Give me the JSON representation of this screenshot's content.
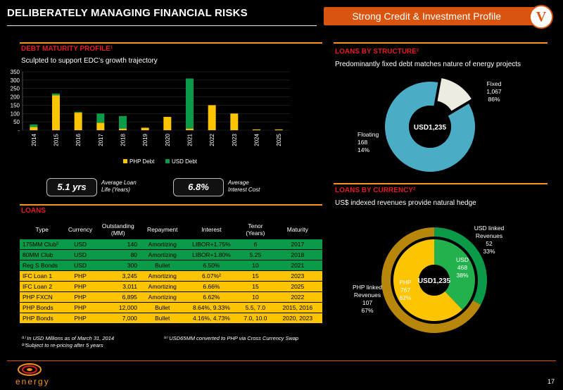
{
  "header": {
    "title": "DELIBERATELY MANAGING FINANCIAL RISKS",
    "banner": "Strong Credit & Investment Profile",
    "badge": "V"
  },
  "debt_profile": {
    "heading": "DEBT MATURITY PROFILE¹",
    "subtitle": "Sculpted to support EDC’s growth trajectory"
  },
  "kpis": {
    "life_value": "5.1 yrs",
    "life_label_1": "Average Loan",
    "life_label_2": "Life (Years)",
    "rate_value": "6.8%",
    "rate_label_1": "Average",
    "rate_label_2": "Interest Cost"
  },
  "loans": {
    "heading": "LOANS",
    "columns": [
      "Type",
      "Currency",
      "Outstanding (MM)",
      "Repayment",
      "Interest",
      "Tenor (Years)",
      "Maturity"
    ],
    "rows": [
      {
        "type": "175MM Club³",
        "currency": "USD",
        "outstanding": "140",
        "repayment": "Amortizing",
        "interest": "LIBOR+1.75%",
        "tenor": "6",
        "maturity": "2017",
        "color": "green"
      },
      {
        "type": "80MM Club",
        "currency": "USD",
        "outstanding": "80",
        "repayment": "Amortizing",
        "interest": "LIBOR+1.80%",
        "tenor": "5.25",
        "maturity": "2018",
        "color": "green"
      },
      {
        "type": "Reg S Bonds",
        "currency": "USD",
        "outstanding": "300",
        "repayment": "Bullet",
        "interest": "6.50%",
        "tenor": "10",
        "maturity": "2021",
        "color": "green"
      },
      {
        "type": "IFC Loan 1",
        "currency": "PHP",
        "outstanding": "3,245",
        "repayment": "Amortizing",
        "interest": "6.07%²",
        "tenor": "15",
        "maturity": "2023",
        "color": "yellow"
      },
      {
        "type": "IFC Loan 2",
        "currency": "PHP",
        "outstanding": "3,011",
        "repayment": "Amortizing",
        "interest": "6.66%",
        "tenor": "15",
        "maturity": "2025",
        "color": "yellow"
      },
      {
        "type": "PHP FXCN",
        "currency": "PHP",
        "outstanding": "6,895",
        "repayment": "Amortizing",
        "interest": "6.62%",
        "tenor": "10",
        "maturity": "2022",
        "color": "yellow"
      },
      {
        "type": "PHP Bonds",
        "currency": "PHP",
        "outstanding": "12,000",
        "repayment": "Bullet",
        "interest": "8.64%, 9.33%",
        "tenor": "5.5, 7.0",
        "maturity": "2015, 2016",
        "color": "yellow"
      },
      {
        "type": "PHP Bonds",
        "currency": "PHP",
        "outstanding": "7,000",
        "repayment": "Bullet",
        "interest": "4.16%, 4.73%",
        "tenor": "7.0, 10.0",
        "maturity": "2020, 2023",
        "color": "yellow"
      }
    ]
  },
  "footnotes": {
    "f1": "⁽¹⁾ In USD Millions as of March 31, 2014",
    "f2": "⁽²⁾Subject to re-pricing after 5 years",
    "f3": "⁽³⁾ USD65MM converted to PHP via Cross Currency Swap"
  },
  "structure": {
    "heading": "LOANS BY STRUCTURE²",
    "subtitle": "Predominantly fixed debt matches nature of energy projects",
    "center": "USD1,235",
    "fixed": {
      "l1": "Fixed",
      "l2": "1,067",
      "l3": "86%"
    },
    "floating": {
      "l1": "Floating",
      "l2": "168",
      "l3": "14%"
    }
  },
  "currency": {
    "heading": "LOANS BY CURRENCY²",
    "subtitle": "US$ indexed revenues provide natural hedge",
    "center": "USD1,235",
    "outer_usd": {
      "l1": "USD linked",
      "l2": "Revenues",
      "l3": "52",
      "l4": "33%"
    },
    "outer_php": {
      "l1": "PHP linked",
      "l2": "Revenues",
      "l3": "107",
      "l4": "67%"
    },
    "inner_usd": {
      "l1": "USD",
      "l2": "468",
      "l3": "38%"
    },
    "inner_php": {
      "l1": "PHP",
      "l2": "767",
      "l3": "62%"
    }
  },
  "logo_text": "energy",
  "page_number": "17",
  "chart_data": [
    {
      "type": "bar",
      "stacked": true,
      "categories": [
        "2014",
        "2015",
        "2016",
        "2017",
        "2018",
        "2019",
        "2020",
        "2021",
        "2022",
        "2023",
        "2024",
        "2025"
      ],
      "series": [
        {
          "name": "PHP Debt",
          "color": "#fdc400",
          "values": [
            20,
            210,
            105,
            45,
            10,
            15,
            80,
            10,
            150,
            100,
            5,
            5
          ]
        },
        {
          "name": "USD Debt",
          "color": "#0b9a48",
          "values": [
            15,
            10,
            5,
            55,
            75,
            0,
            0,
            300,
            0,
            0,
            0,
            0
          ]
        }
      ],
      "yticks": [
        "-",
        "50",
        "100",
        "150",
        "200",
        "250",
        "300",
        "350"
      ],
      "ylim": [
        0,
        350
      ],
      "legend": "bottom"
    },
    {
      "type": "pie",
      "style": "donut",
      "labels": [
        "Fixed",
        "Floating"
      ],
      "values": [
        1067,
        168
      ],
      "colors": [
        "#eeece1",
        "#4bacc6"
      ]
    },
    {
      "type": "pie",
      "style": "double-donut",
      "outer": {
        "labels": [
          "USD linked Revenues",
          "PHP linked Revenues"
        ],
        "values": [
          52,
          107
        ],
        "colors": [
          "#0b9a48",
          "#b8860b"
        ]
      },
      "inner": {
        "labels": [
          "USD",
          "PHP"
        ],
        "values": [
          468,
          767
        ],
        "colors": [
          "#22b14c",
          "#fdc400"
        ]
      }
    }
  ]
}
